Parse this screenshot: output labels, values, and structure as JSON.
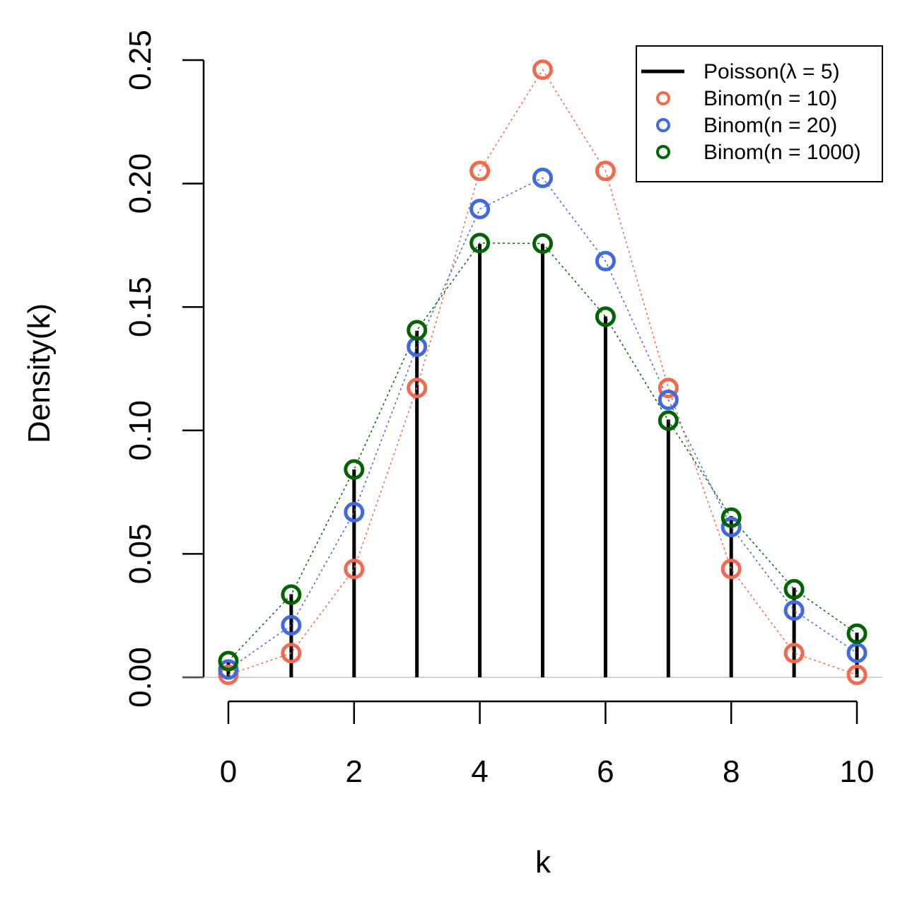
{
  "chart_data": {
    "type": "scatter",
    "xlabel": "k",
    "ylabel": "Density(k)",
    "xlim": [
      0,
      10
    ],
    "ylim": [
      0,
      0.25
    ],
    "x_ticks": [
      "0",
      "2",
      "4",
      "6",
      "8",
      "10"
    ],
    "y_ticks": [
      "0.00",
      "0.05",
      "0.10",
      "0.15",
      "0.20",
      "0.25"
    ],
    "x": [
      0,
      1,
      2,
      3,
      4,
      5,
      6,
      7,
      8,
      9,
      10
    ],
    "legend_position": "top-right",
    "poisson": {
      "name": "Poisson(λ = 5)",
      "color": "#000000",
      "values": [
        0.0067,
        0.0337,
        0.0842,
        0.1404,
        0.1755,
        0.1755,
        0.1462,
        0.1044,
        0.0653,
        0.0363,
        0.0181
      ]
    },
    "series": [
      {
        "name": "Binom(n = 10)",
        "color": "#F4694D",
        "values": [
          0.001,
          0.0098,
          0.0439,
          0.1172,
          0.2051,
          0.2461,
          0.2051,
          0.1172,
          0.0439,
          0.0098,
          0.001
        ]
      },
      {
        "name": "Binom(n = 20)",
        "color": "#4169E1",
        "values": [
          0.0032,
          0.0211,
          0.0669,
          0.1339,
          0.1897,
          0.2023,
          0.1686,
          0.1124,
          0.0609,
          0.0271,
          0.0099
        ]
      },
      {
        "name": "Binom(n = 1000)",
        "color": "#006400",
        "values": [
          0.0066,
          0.0335,
          0.0842,
          0.1406,
          0.1759,
          0.1757,
          0.1461,
          0.104,
          0.0647,
          0.0357,
          0.0177
        ]
      }
    ]
  }
}
